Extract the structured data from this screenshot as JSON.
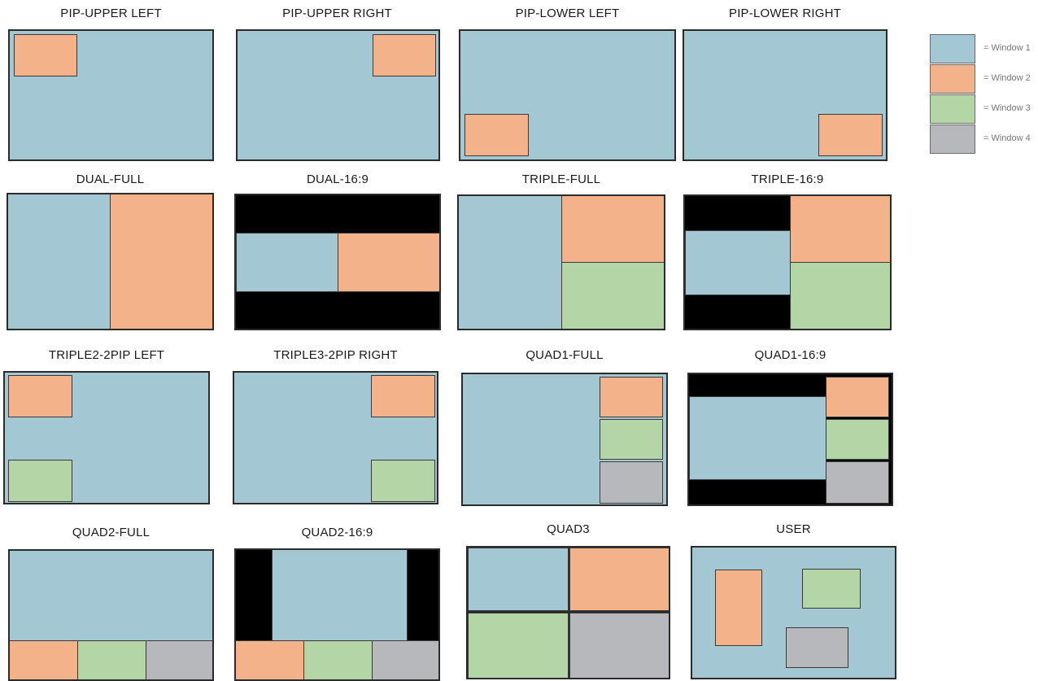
{
  "colors": {
    "window1": "#a3c8d3",
    "window2": "#f3b289",
    "window3": "#b4d5a6",
    "window4": "#b7b8bc",
    "black_bar": "#000000",
    "frame": "#2b2b2b"
  },
  "layouts": [
    {
      "id": "pip-upper-left",
      "title": "PIP-UPPER LEFT"
    },
    {
      "id": "pip-upper-right",
      "title": "PIP-UPPER RIGHT"
    },
    {
      "id": "pip-lower-left",
      "title": "PIP-LOWER LEFT"
    },
    {
      "id": "pip-lower-right",
      "title": "PIP-LOWER RIGHT"
    },
    {
      "id": "dual-full",
      "title": "DUAL-FULL"
    },
    {
      "id": "dual-16-9",
      "title": "DUAL-16:9"
    },
    {
      "id": "triple-full",
      "title": "TRIPLE-FULL"
    },
    {
      "id": "triple-16-9",
      "title": "TRIPLE-16:9"
    },
    {
      "id": "triple2-2pip-left",
      "title": "TRIPLE2-2PIP LEFT"
    },
    {
      "id": "triple3-2pip-right",
      "title": "TRIPLE3-2PIP RIGHT"
    },
    {
      "id": "quad1-full",
      "title": "QUAD1-FULL"
    },
    {
      "id": "quad1-16-9",
      "title": "QUAD1-16:9"
    },
    {
      "id": "quad2-full",
      "title": "QUAD2-FULL"
    },
    {
      "id": "quad2-16-9",
      "title": "QUAD2-16:9"
    },
    {
      "id": "quad3",
      "title": "QUAD3"
    },
    {
      "id": "user",
      "title": "USER"
    }
  ],
  "legend": [
    {
      "label": "= Window 1",
      "color": "#a3c8d3"
    },
    {
      "label": "= Window 2",
      "color": "#f3b289"
    },
    {
      "label": "= Window 3",
      "color": "#b4d5a6"
    },
    {
      "label": "= Window 4",
      "color": "#b7b8bc"
    }
  ]
}
